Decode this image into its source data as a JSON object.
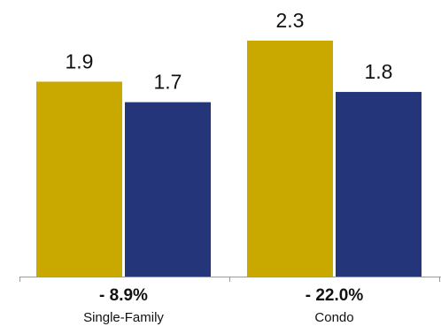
{
  "chart_data": {
    "type": "bar",
    "categories": [
      "Single-Family",
      "Condo"
    ],
    "changes": [
      "- 8.9%",
      "- 22.0%"
    ],
    "series": [
      {
        "color": "#C9A800",
        "values": [
          1.9,
          2.3
        ]
      },
      {
        "color": "#243579",
        "values": [
          1.7,
          1.8
        ]
      }
    ],
    "data_labels": [
      [
        "1.9",
        "2.3"
      ],
      [
        "1.7",
        "1.8"
      ]
    ],
    "ylim": [
      0,
      2.3
    ],
    "grid": false,
    "legend": "none"
  }
}
